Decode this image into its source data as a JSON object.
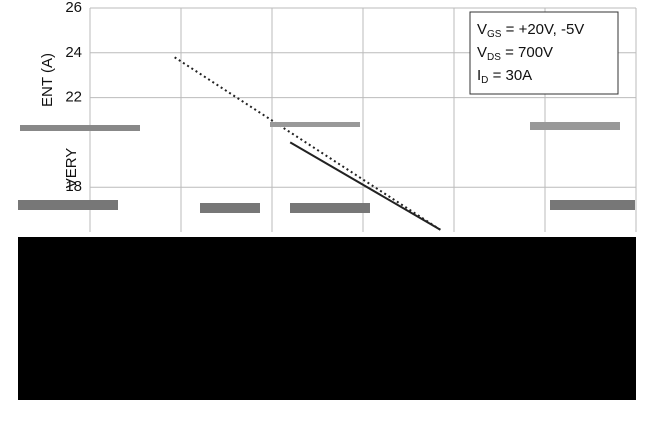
{
  "chart_data": {
    "type": "line",
    "y_label_parts": [
      "ENT (A)",
      "VERY"
    ],
    "annotation": [
      {
        "main": "V",
        "sub": "GS",
        "rest": " = +20V, -5V"
      },
      {
        "main": "V",
        "sub": "DS",
        "rest": " = 700V"
      },
      {
        "main": "I",
        "sub": "D",
        "rest": " = 30A"
      }
    ],
    "xlim": [
      0,
      6
    ],
    "ylim": [
      16,
      26
    ],
    "yticks": [
      26,
      24,
      22,
      18
    ],
    "grid": true,
    "series": [
      {
        "color": "#222222",
        "style": "dotted",
        "x": [
          0.93,
          3.85
        ],
        "values": [
          23.8,
          16.1
        ]
      },
      {
        "color": "#222222",
        "style": "solid",
        "x": [
          2.2,
          3.85
        ],
        "values": [
          20.0,
          16.1
        ]
      }
    ]
  }
}
